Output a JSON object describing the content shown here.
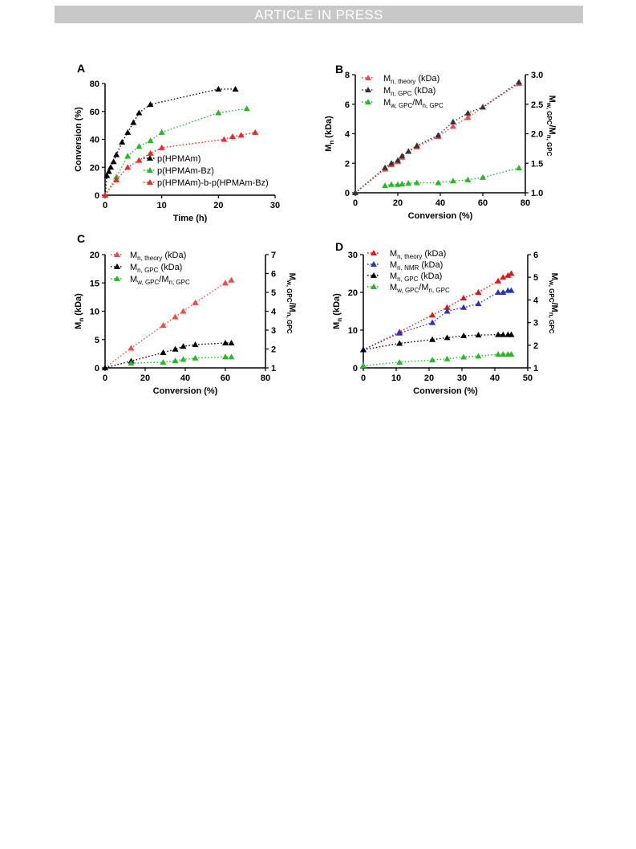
{
  "banner": {
    "text": "ARTICLE IN PRESS"
  },
  "chart_data": [
    {
      "panel": "A",
      "type": "scatter",
      "xlabel": "Time (h)",
      "ylabel": "Conversion (%)",
      "xlim": [
        0,
        30
      ],
      "ylim": [
        0,
        80
      ],
      "xticks": [
        0,
        10,
        20,
        30
      ],
      "yticks": [
        0,
        20,
        40,
        60,
        80
      ],
      "legend": "lower-right",
      "series": [
        {
          "name": "p(HPMAm)",
          "color": "#000000",
          "x": [
            0,
            0.33,
            0.67,
            1,
            1.5,
            2,
            3,
            4,
            5,
            6,
            8,
            20,
            23
          ],
          "y": [
            0,
            14,
            17,
            20,
            24,
            29,
            38,
            45,
            52,
            59,
            65,
            76,
            76
          ]
        },
        {
          "name": "p(HPMAm-Bz)",
          "color": "#22bb22",
          "x": [
            0,
            2,
            4,
            6,
            8,
            10,
            20,
            25
          ],
          "y": [
            0,
            13,
            28,
            35,
            39,
            45,
            59,
            62
          ]
        },
        {
          "name": "p(HPMAm)-b-p(HPMAm-Bz)",
          "color": "#ff2222",
          "x": [
            0,
            2,
            4,
            6,
            8,
            10,
            21,
            22.5,
            24,
            26.5
          ],
          "y": [
            0,
            11,
            20,
            25,
            30,
            34,
            40,
            42,
            43,
            45
          ]
        }
      ]
    },
    {
      "panel": "B",
      "type": "scatter",
      "xlabel": "Conversion (%)",
      "ylabel": "Mn (kDa)",
      "ylabel2": "Mw, GPC/Mn, GPC",
      "xlim": [
        0,
        80
      ],
      "ylim": [
        0,
        8
      ],
      "y2lim": [
        1.0,
        3.0
      ],
      "xticks": [
        0,
        20,
        40,
        60,
        80
      ],
      "yticks": [
        0,
        2,
        4,
        6,
        8
      ],
      "y2ticks": [
        1.0,
        1.5,
        2.0,
        2.5,
        3.0
      ],
      "legend": "top-left",
      "series": [
        {
          "name": "Mn, theory (kDa)",
          "color": "#ff4444",
          "axis": "left",
          "x": [
            0,
            14,
            17,
            20,
            22,
            25,
            29,
            39,
            46,
            53,
            60,
            77
          ],
          "y": [
            0,
            1.6,
            1.9,
            2.1,
            2.4,
            2.8,
            3.1,
            3.8,
            4.5,
            5.1,
            5.8,
            7.4
          ]
        },
        {
          "name": "Mn, GPC (kDa)",
          "color": "#333333",
          "axis": "left",
          "x": [
            0,
            14,
            17,
            20,
            22,
            25,
            29,
            39,
            46,
            53,
            60,
            77
          ],
          "y": [
            0,
            1.7,
            2.0,
            2.2,
            2.5,
            2.8,
            3.2,
            3.9,
            4.8,
            5.4,
            5.8,
            7.5
          ]
        },
        {
          "name": "Mw, GPC/Mn, GPC",
          "color": "#22bb22",
          "axis": "right",
          "x": [
            14,
            17,
            20,
            22,
            25,
            29,
            39,
            46,
            53,
            60,
            77
          ],
          "y": [
            1.12,
            1.14,
            1.14,
            1.15,
            1.16,
            1.17,
            1.17,
            1.2,
            1.22,
            1.26,
            1.42
          ]
        }
      ]
    },
    {
      "panel": "C",
      "type": "scatter",
      "xlabel": "Conversion (%)",
      "ylabel": "Mn (kDa)",
      "ylabel2": "Mw, GPC/Mn, GPC",
      "xlim": [
        0,
        80
      ],
      "ylim": [
        0,
        20
      ],
      "y2lim": [
        1,
        7
      ],
      "xticks": [
        0,
        20,
        40,
        60,
        80
      ],
      "yticks": [
        0,
        5,
        10,
        15,
        20
      ],
      "y2ticks": [
        1,
        2,
        3,
        4,
        5,
        6,
        7
      ],
      "legend": "top-left",
      "series": [
        {
          "name": "Mn, theory (kDa)",
          "color": "#ff4444",
          "axis": "left",
          "x": [
            0,
            13,
            29,
            35,
            39,
            45,
            60,
            63
          ],
          "y": [
            0,
            3.5,
            7.5,
            9,
            10,
            11.5,
            15,
            15.5
          ]
        },
        {
          "name": "Mn, GPC (kDa)",
          "color": "#000000",
          "axis": "left",
          "x": [
            0,
            13,
            29,
            35,
            39,
            45,
            60,
            63
          ],
          "y": [
            0,
            1.2,
            2.7,
            3.3,
            3.8,
            4.1,
            4.4,
            4.4
          ]
        },
        {
          "name": "Mw, GPC/Mn, GPC",
          "color": "#22bb22",
          "axis": "right",
          "x": [
            13,
            29,
            35,
            39,
            45,
            60,
            63
          ],
          "y": [
            1.25,
            1.3,
            1.37,
            1.45,
            1.52,
            1.58,
            1.58
          ]
        }
      ]
    },
    {
      "panel": "D",
      "type": "scatter",
      "xlabel": "Conversion (%)",
      "ylabel": "Mn (kDa)",
      "ylabel2": "Mw, GPC/Mn, GPC",
      "xlim": [
        0,
        50
      ],
      "ylim": [
        0,
        30
      ],
      "y2lim": [
        1,
        6
      ],
      "xticks": [
        0,
        10,
        20,
        30,
        40,
        50
      ],
      "yticks": [
        0,
        10,
        20,
        30
      ],
      "y2ticks": [
        1,
        2,
        3,
        4,
        5,
        6
      ],
      "legend": "top-left",
      "series": [
        {
          "name": "Mn, theory (kDa)",
          "color": "#ee1111",
          "axis": "left",
          "x": [
            0,
            11,
            21,
            25.5,
            30.5,
            35,
            41,
            42.5,
            44,
            45
          ],
          "y": [
            4.8,
            9.5,
            14,
            16,
            18.5,
            20,
            23,
            24,
            24.5,
            25
          ]
        },
        {
          "name": "Mn, NMR (kDa)",
          "color": "#2233cc",
          "axis": "left",
          "x": [
            0,
            11,
            21,
            25.5,
            30.5,
            35,
            41,
            42.5,
            44,
            45
          ],
          "y": [
            4.8,
            9.2,
            12,
            15,
            16,
            17,
            20,
            20,
            20.5,
            20.5
          ]
        },
        {
          "name": "Mn, GPC (kDa)",
          "color": "#000000",
          "axis": "left",
          "x": [
            0,
            11,
            21,
            25.5,
            30.5,
            35,
            41,
            42.5,
            44,
            45
          ],
          "y": [
            4.8,
            6.5,
            7.5,
            8,
            8.5,
            8.7,
            8.8,
            8.8,
            8.8,
            8.8
          ]
        },
        {
          "name": "Mw, GPC/Mn, GPC",
          "color": "#22bb22",
          "axis": "right",
          "x": [
            0,
            11,
            21,
            25.5,
            30.5,
            35,
            41,
            42.5,
            44,
            45
          ],
          "y": [
            1.1,
            1.25,
            1.35,
            1.4,
            1.48,
            1.52,
            1.6,
            1.6,
            1.6,
            1.6
          ]
        }
      ]
    }
  ]
}
